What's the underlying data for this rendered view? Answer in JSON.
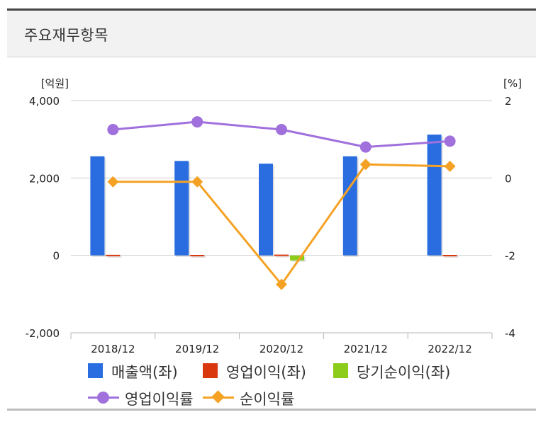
{
  "header": {
    "title": "주요재무항목"
  },
  "chart_data": {
    "type": "bar",
    "categories": [
      "2018/12",
      "2019/12",
      "2020/12",
      "2021/12",
      "2022/12"
    ],
    "left_axis": {
      "unit": "[억원]",
      "ticks": [
        "4,000",
        "2,000",
        "0",
        "-2,000"
      ],
      "tick_values": [
        4000,
        2000,
        0,
        -2000
      ],
      "range": [
        -2000,
        4000
      ]
    },
    "right_axis": {
      "unit": "[%]",
      "ticks": [
        "2",
        "0",
        "-2",
        "-4"
      ],
      "tick_values": [
        2,
        0,
        -2,
        -4
      ],
      "range": [
        -4,
        2
      ]
    },
    "bar_series": [
      {
        "name": "매출액(좌)",
        "color": "#2a6de0",
        "values": [
          2560,
          2440,
          2370,
          2560,
          3120
        ]
      },
      {
        "name": "영업이익(좌)",
        "color": "#d9380f",
        "values": [
          15,
          12,
          20,
          0,
          12
        ]
      },
      {
        "name": "당기순이익(좌)",
        "color": "#8ccc1a",
        "values": [
          0,
          0,
          -130,
          0,
          0
        ]
      }
    ],
    "line_series": [
      {
        "name": "영업이익률",
        "color": "#a070dd",
        "marker": "circle",
        "values": [
          1.25,
          1.45,
          1.25,
          0.8,
          0.95
        ]
      },
      {
        "name": "순이익률",
        "color": "#f5a224",
        "marker": "diamond",
        "values": [
          -0.1,
          -0.1,
          -2.75,
          0.35,
          0.3
        ]
      }
    ],
    "grid": "horizontal",
    "legend_position": "bottom"
  }
}
